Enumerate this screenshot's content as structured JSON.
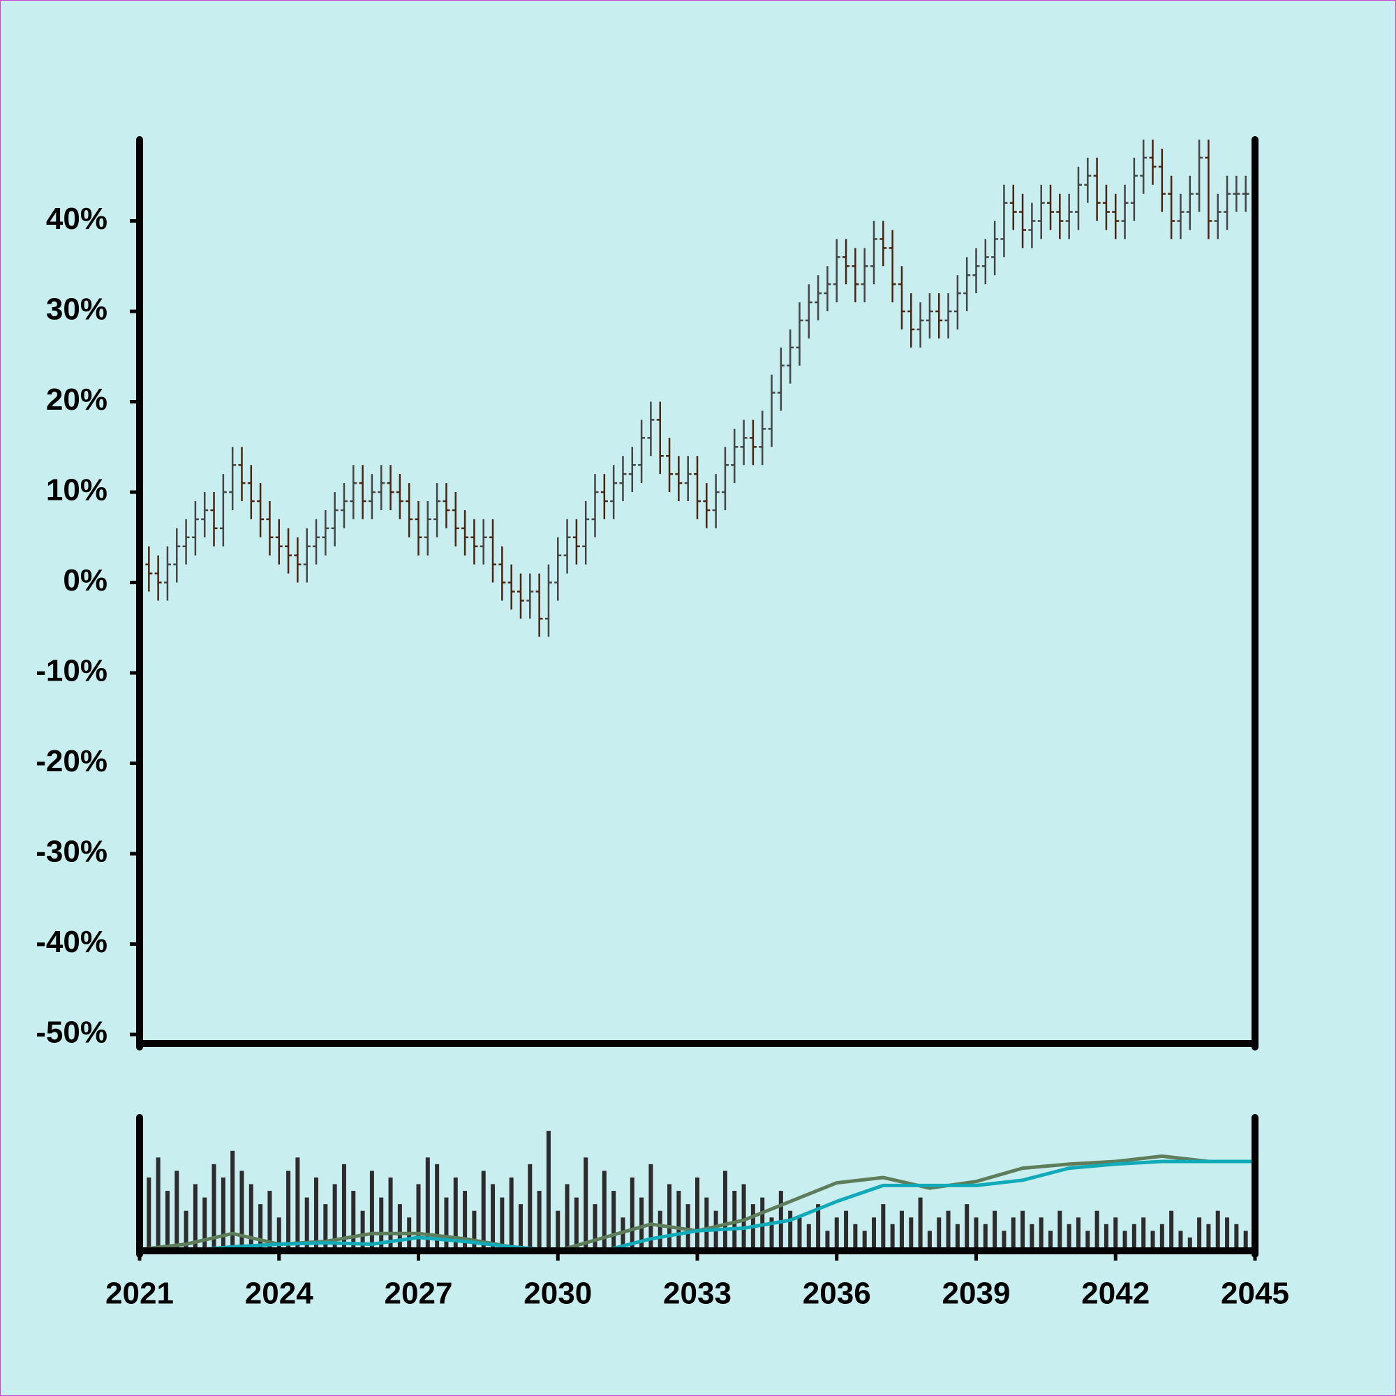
{
  "chart_data": [
    {
      "type": "ohlc",
      "up_color": "#444444",
      "down_color": "#4a2410",
      "xlim": [
        2021,
        2045
      ],
      "ylim": [
        -51,
        49
      ],
      "yticks": [
        {
          "value": -50,
          "label": "-50%"
        },
        {
          "value": -40,
          "label": "-40%"
        },
        {
          "value": -30,
          "label": "-30%"
        },
        {
          "value": -20,
          "label": "-20%"
        },
        {
          "value": -10,
          "label": "-10%"
        },
        {
          "value": 0,
          "label": "0%"
        },
        {
          "value": 10,
          "label": "10%"
        },
        {
          "value": 20,
          "label": "20%"
        },
        {
          "value": 30,
          "label": "30%"
        },
        {
          "value": 40,
          "label": "40%"
        }
      ],
      "x": [
        2021,
        2021.2,
        2021.4,
        2021.6,
        2021.8,
        2022,
        2022.2,
        2022.4,
        2022.6,
        2022.8,
        2023,
        2023.2,
        2023.4,
        2023.6,
        2023.8,
        2024,
        2024.2,
        2024.4,
        2024.6,
        2024.8,
        2025,
        2025.2,
        2025.4,
        2025.6,
        2025.8,
        2026,
        2026.2,
        2026.4,
        2026.6,
        2026.8,
        2027,
        2027.2,
        2027.4,
        2027.6,
        2027.8,
        2028,
        2028.2,
        2028.4,
        2028.6,
        2028.8,
        2029,
        2029.2,
        2029.4,
        2029.6,
        2029.8,
        2030,
        2030.2,
        2030.4,
        2030.6,
        2030.8,
        2031,
        2031.2,
        2031.4,
        2031.6,
        2031.8,
        2032,
        2032.2,
        2032.4,
        2032.6,
        2032.8,
        2033,
        2033.2,
        2033.4,
        2033.6,
        2033.8,
        2034,
        2034.2,
        2034.4,
        2034.6,
        2034.8,
        2035,
        2035.2,
        2035.4,
        2035.6,
        2035.8,
        2036,
        2036.2,
        2036.4,
        2036.6,
        2036.8,
        2037,
        2037.2,
        2037.4,
        2037.6,
        2037.8,
        2038,
        2038.2,
        2038.4,
        2038.6,
        2038.8,
        2039,
        2039.2,
        2039.4,
        2039.6,
        2039.8,
        2040,
        2040.2,
        2040.4,
        2040.6,
        2040.8,
        2041,
        2041.2,
        2041.4,
        2041.6,
        2041.8,
        2042,
        2042.2,
        2042.4,
        2042.6,
        2042.8,
        2043,
        2043.2,
        2043.4,
        2043.6,
        2043.8,
        2044,
        2044.2,
        2044.4,
        2044.6,
        2044.8
      ],
      "open": [
        3,
        2,
        1,
        0,
        2,
        4,
        5,
        7,
        8,
        6,
        10,
        13,
        11,
        9,
        7,
        5,
        4,
        3,
        2,
        4,
        5,
        6,
        8,
        9,
        11,
        9,
        10,
        11,
        10,
        9,
        7,
        5,
        7,
        9,
        8,
        6,
        5,
        4,
        5,
        2,
        0,
        -1,
        -2,
        -1,
        -4,
        0,
        3,
        5,
        4,
        7,
        10,
        9,
        11,
        12,
        13,
        16,
        18,
        14,
        12,
        11,
        12,
        9,
        8,
        10,
        13,
        15,
        16,
        15,
        17,
        21,
        24,
        26,
        29,
        31,
        32,
        33,
        36,
        35,
        33,
        35,
        38,
        37,
        33,
        30,
        28,
        29,
        30,
        29,
        30,
        32,
        34,
        35,
        36,
        38,
        42,
        41,
        39,
        40,
        42,
        41,
        40,
        41,
        44,
        45,
        42,
        41,
        40,
        42,
        45,
        47,
        46,
        43,
        40,
        41,
        43,
        47,
        40,
        41,
        43,
        43
      ],
      "high": [
        5,
        4,
        3,
        4,
        6,
        7,
        9,
        10,
        10,
        12,
        15,
        15,
        13,
        11,
        9,
        7,
        6,
        5,
        6,
        7,
        8,
        10,
        11,
        13,
        13,
        12,
        13,
        13,
        12,
        11,
        9,
        9,
        11,
        11,
        10,
        8,
        7,
        7,
        7,
        4,
        2,
        1,
        1,
        1,
        2,
        5,
        7,
        7,
        9,
        12,
        12,
        13,
        14,
        15,
        18,
        20,
        20,
        16,
        14,
        14,
        14,
        11,
        12,
        15,
        17,
        18,
        18,
        19,
        23,
        26,
        28,
        31,
        33,
        34,
        35,
        38,
        38,
        37,
        37,
        40,
        40,
        39,
        35,
        32,
        31,
        32,
        32,
        32,
        34,
        36,
        37,
        38,
        40,
        44,
        44,
        43,
        42,
        44,
        44,
        43,
        43,
        46,
        47,
        47,
        44,
        43,
        44,
        47,
        49,
        49,
        48,
        45,
        43,
        45,
        49,
        49,
        43,
        45,
        45,
        45
      ],
      "low": [
        0,
        -1,
        -2,
        -2,
        0,
        2,
        3,
        5,
        4,
        4,
        8,
        9,
        7,
        5,
        3,
        2,
        1,
        0,
        0,
        2,
        3,
        4,
        6,
        7,
        7,
        7,
        8,
        8,
        7,
        5,
        3,
        3,
        5,
        6,
        4,
        3,
        2,
        2,
        0,
        -2,
        -3,
        -4,
        -4,
        -6,
        -6,
        -2,
        1,
        2,
        2,
        5,
        7,
        7,
        9,
        10,
        11,
        14,
        12,
        10,
        9,
        9,
        7,
        6,
        6,
        8,
        11,
        13,
        13,
        13,
        15,
        19,
        22,
        24,
        27,
        29,
        30,
        31,
        33,
        31,
        31,
        33,
        35,
        31,
        28,
        26,
        26,
        27,
        27,
        27,
        28,
        30,
        32,
        33,
        34,
        36,
        39,
        37,
        37,
        38,
        39,
        38,
        38,
        39,
        42,
        40,
        39,
        38,
        38,
        40,
        43,
        44,
        41,
        38,
        38,
        39,
        41,
        38,
        38,
        39,
        41,
        41
      ],
      "close": [
        2,
        1,
        0,
        2,
        4,
        5,
        7,
        8,
        6,
        10,
        13,
        11,
        9,
        7,
        5,
        4,
        3,
        2,
        4,
        5,
        6,
        8,
        9,
        11,
        9,
        10,
        11,
        10,
        9,
        7,
        5,
        7,
        9,
        8,
        6,
        5,
        4,
        5,
        2,
        0,
        -1,
        -2,
        -1,
        -4,
        0,
        3,
        5,
        4,
        7,
        10,
        9,
        11,
        12,
        13,
        16,
        18,
        14,
        12,
        11,
        12,
        9,
        8,
        10,
        13,
        15,
        16,
        15,
        17,
        21,
        24,
        26,
        29,
        31,
        32,
        33,
        36,
        35,
        33,
        35,
        38,
        37,
        33,
        30,
        28,
        29,
        30,
        29,
        30,
        32,
        34,
        35,
        36,
        38,
        42,
        41,
        39,
        40,
        42,
        41,
        40,
        41,
        44,
        45,
        42,
        41,
        40,
        42,
        45,
        47,
        46,
        43,
        40,
        41,
        43,
        47,
        40,
        41,
        43,
        43,
        43
      ]
    },
    {
      "type": "bar",
      "color": "#2e2b2c",
      "xlim": [
        2021,
        2045
      ],
      "ylim": [
        0,
        100
      ],
      "xticks": [
        2021,
        2024,
        2027,
        2030,
        2033,
        2036,
        2039,
        2042,
        2045
      ],
      "x": [
        2021,
        2021.2,
        2021.4,
        2021.6,
        2021.8,
        2022,
        2022.2,
        2022.4,
        2022.6,
        2022.8,
        2023,
        2023.2,
        2023.4,
        2023.6,
        2023.8,
        2024,
        2024.2,
        2024.4,
        2024.6,
        2024.8,
        2025,
        2025.2,
        2025.4,
        2025.6,
        2025.8,
        2026,
        2026.2,
        2026.4,
        2026.6,
        2026.8,
        2027,
        2027.2,
        2027.4,
        2027.6,
        2027.8,
        2028,
        2028.2,
        2028.4,
        2028.6,
        2028.8,
        2029,
        2029.2,
        2029.4,
        2029.6,
        2029.8,
        2030,
        2030.2,
        2030.4,
        2030.6,
        2030.8,
        2031,
        2031.2,
        2031.4,
        2031.6,
        2031.8,
        2032,
        2032.2,
        2032.4,
        2032.6,
        2032.8,
        2033,
        2033.2,
        2033.4,
        2033.6,
        2033.8,
        2034,
        2034.2,
        2034.4,
        2034.6,
        2034.8,
        2035,
        2035.2,
        2035.4,
        2035.6,
        2035.8,
        2036,
        2036.2,
        2036.4,
        2036.6,
        2036.8,
        2037,
        2037.2,
        2037.4,
        2037.6,
        2037.8,
        2038,
        2038.2,
        2038.4,
        2038.6,
        2038.8,
        2039,
        2039.2,
        2039.4,
        2039.6,
        2039.8,
        2040,
        2040.2,
        2040.4,
        2040.6,
        2040.8,
        2041,
        2041.2,
        2041.4,
        2041.6,
        2041.8,
        2042,
        2042.2,
        2042.4,
        2042.6,
        2042.8,
        2043,
        2043.2,
        2043.4,
        2043.6,
        2043.8,
        2044,
        2044.2,
        2044.4,
        2044.6,
        2044.8
      ],
      "values": [
        80,
        55,
        70,
        45,
        60,
        30,
        50,
        40,
        65,
        55,
        75,
        60,
        50,
        35,
        45,
        25,
        60,
        70,
        40,
        55,
        35,
        50,
        65,
        45,
        30,
        60,
        40,
        55,
        35,
        25,
        50,
        70,
        65,
        40,
        55,
        45,
        30,
        60,
        50,
        40,
        55,
        35,
        65,
        45,
        90,
        30,
        50,
        40,
        70,
        35,
        60,
        45,
        25,
        55,
        40,
        65,
        30,
        50,
        45,
        35,
        55,
        40,
        30,
        60,
        45,
        50,
        35,
        40,
        25,
        45,
        30,
        25,
        20,
        35,
        15,
        25,
        30,
        20,
        15,
        25,
        35,
        20,
        30,
        25,
        40,
        15,
        25,
        30,
        20,
        35,
        25,
        20,
        30,
        15,
        25,
        30,
        20,
        25,
        15,
        30,
        20,
        25,
        15,
        30,
        20,
        25,
        15,
        20,
        25,
        15,
        20,
        30,
        15,
        10,
        25,
        20,
        30,
        25,
        20,
        15
      ],
      "series": [
        {
          "color": "#5e7d5a",
          "x": [
            2021,
            2022,
            2023,
            2024,
            2025,
            2026,
            2027,
            2028,
            2029,
            2030,
            2031,
            2032,
            2033,
            2034,
            2035,
            2036,
            2037,
            2038,
            2039,
            2040,
            2041,
            2042,
            2043,
            2044,
            2045
          ],
          "values": [
            1,
            5,
            13,
            5,
            7,
            13,
            13,
            9,
            3,
            0,
            10,
            20,
            15,
            23,
            37,
            51,
            55,
            47,
            52,
            62,
            65,
            67,
            71,
            67,
            67
          ]
        },
        {
          "color": "#11aab8",
          "x": [
            2021,
            2022,
            2023,
            2024,
            2025,
            2026,
            2027,
            2028,
            2029,
            2030,
            2031,
            2032,
            2033,
            2034,
            2035,
            2036,
            2037,
            2038,
            2039,
            2040,
            2041,
            2042,
            2043,
            2044,
            2045
          ],
          "values": [
            0,
            0,
            3,
            5,
            6,
            5,
            10,
            7,
            3,
            0,
            0,
            9,
            15,
            17,
            23,
            37,
            49,
            49,
            49,
            53,
            62,
            65,
            67,
            67,
            67
          ]
        }
      ]
    }
  ]
}
